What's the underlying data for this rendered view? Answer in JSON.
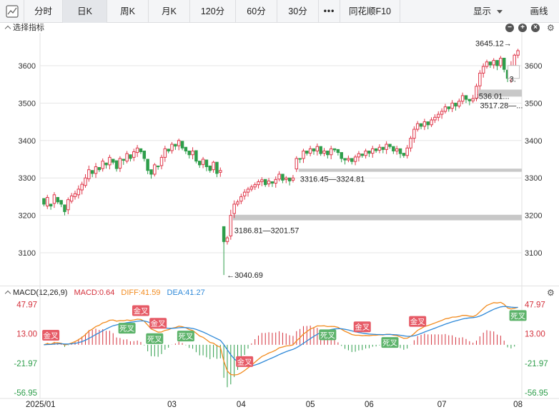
{
  "toolbar": {
    "tabs": [
      {
        "label": "分时",
        "active": false
      },
      {
        "label": "日K",
        "active": true
      },
      {
        "label": "周K",
        "active": false
      },
      {
        "label": "月K",
        "active": false
      },
      {
        "label": "120分",
        "active": false
      },
      {
        "label": "60分",
        "active": false
      },
      {
        "label": "30分",
        "active": false
      }
    ],
    "more": "•••",
    "f10": "同花顺F10",
    "display": "显示",
    "draw": "画线"
  },
  "indicator_bar": {
    "label": "选择指标"
  },
  "macd": {
    "title": "MACD(12,26,9)",
    "macd_label": "MACD:0.64",
    "diff_label": "DIFF:41.59",
    "dea_label": "DEA:41.27",
    "colors": {
      "macd": "#d4313c",
      "diff": "#f28b1e",
      "dea": "#2f89d8"
    }
  },
  "colors": {
    "up": "#e0374a",
    "down": "#2e9e4b",
    "grid": "#e6e6e6",
    "gap": "#c8c8c8",
    "golden": "#e65a66",
    "death": "#5cb36a"
  },
  "chart_data": {
    "type": "candlestick",
    "price_axis": {
      "ticks": [
        3100,
        3200,
        3300,
        3400,
        3500,
        3600
      ],
      "range": [
        3020,
        3680
      ]
    },
    "macd_axis": {
      "ticks": [
        47.97,
        13.0,
        -21.97,
        -56.95
      ],
      "labels": [
        "47.97",
        "13.00",
        "-21.97",
        "-56.95"
      ]
    },
    "x_axis_labels": [
      {
        "label": "2025/01",
        "index": 0
      },
      {
        "label": "03",
        "index": 37
      },
      {
        "label": "04",
        "index": 57
      },
      {
        "label": "05",
        "index": 77
      },
      {
        "label": "06",
        "index": 94
      },
      {
        "label": "07",
        "index": 115
      },
      {
        "label": "08",
        "index": 137
      }
    ],
    "candles": [
      [
        3245,
        3230,
        3210
      ],
      [
        3225,
        3248,
        3255
      ],
      [
        3230,
        3225,
        3218
      ],
      [
        3232,
        3255,
        3262
      ],
      [
        3248,
        3236,
        3228
      ],
      [
        3240,
        3230,
        3210
      ],
      [
        3228,
        3210,
        3203
      ],
      [
        3215,
        3242,
        3248
      ],
      [
        3238,
        3252,
        3260
      ],
      [
        3250,
        3258,
        3266
      ],
      [
        3255,
        3270,
        3280
      ],
      [
        3268,
        3283,
        3290
      ],
      [
        3280,
        3300,
        3310
      ],
      [
        3298,
        3322,
        3333
      ],
      [
        3320,
        3312,
        3308
      ],
      [
        3312,
        3330,
        3340
      ],
      [
        3328,
        3322,
        3315
      ],
      [
        3325,
        3345,
        3352
      ],
      [
        3340,
        3335,
        3328
      ],
      [
        3335,
        3355,
        3362
      ],
      [
        3350,
        3342,
        3336
      ],
      [
        3346,
        3325,
        3320
      ],
      [
        3326,
        3352,
        3358
      ],
      [
        3350,
        3347,
        3340
      ],
      [
        3345,
        3365,
        3372
      ],
      [
        3362,
        3352,
        3345
      ],
      [
        3355,
        3370,
        3378
      ],
      [
        3368,
        3380,
        3388
      ],
      [
        3378,
        3370,
        3362
      ],
      [
        3372,
        3352,
        3345
      ],
      [
        3350,
        3320,
        3314
      ],
      [
        3322,
        3310,
        3305
      ],
      [
        3310,
        3335,
        3340
      ],
      [
        3332,
        3330,
        3322
      ],
      [
        3333,
        3355,
        3362
      ],
      [
        3355,
        3378,
        3386
      ],
      [
        3377,
        3372,
        3366
      ],
      [
        3373,
        3390,
        3396
      ],
      [
        3390,
        3385,
        3376
      ],
      [
        3386,
        3400,
        3405
      ],
      [
        3398,
        3380,
        3372
      ],
      [
        3382,
        3372,
        3365
      ],
      [
        3372,
        3362,
        3352
      ],
      [
        3362,
        3372,
        3382
      ],
      [
        3373,
        3345,
        3340
      ],
      [
        3345,
        3335,
        3330
      ],
      [
        3336,
        3350,
        3356
      ],
      [
        3348,
        3330,
        3324
      ],
      [
        3332,
        3320,
        3318
      ],
      [
        3322,
        3342,
        3346
      ],
      [
        3342,
        3312,
        3305
      ],
      [
        3315,
        3320,
        3328
      ],
      [
        3170,
        3130,
        3125
      ],
      [
        3130,
        3140,
        3145
      ],
      [
        3145,
        3200,
        3215
      ],
      [
        3205,
        3230,
        3240
      ],
      [
        3230,
        3236,
        3242
      ],
      [
        3238,
        3250,
        3258
      ],
      [
        3252,
        3262,
        3270
      ],
      [
        3262,
        3270,
        3276
      ],
      [
        3270,
        3276,
        3282
      ],
      [
        3276,
        3282,
        3288
      ],
      [
        3282,
        3290,
        3296
      ],
      [
        3290,
        3295,
        3302
      ],
      [
        3296,
        3282,
        3276
      ],
      [
        3284,
        3292,
        3300
      ],
      [
        3290,
        3286,
        3280
      ],
      [
        3286,
        3296,
        3304
      ],
      [
        3297,
        3310,
        3318
      ],
      [
        3310,
        3294,
        3290
      ],
      [
        3296,
        3300,
        3305
      ],
      [
        3300,
        3292,
        3284
      ],
      [
        3294,
        3300,
        3308
      ],
      [
        3324,
        3352,
        3358
      ],
      [
        3352,
        3350,
        3344
      ],
      [
        3352,
        3372,
        3378
      ],
      [
        3372,
        3366,
        3358
      ],
      [
        3366,
        3378,
        3386
      ],
      [
        3378,
        3372,
        3366
      ],
      [
        3372,
        3384,
        3392
      ],
      [
        3384,
        3365,
        3360
      ],
      [
        3366,
        3372,
        3380
      ],
      [
        3372,
        3362,
        3356
      ],
      [
        3362,
        3378,
        3386
      ],
      [
        3378,
        3375,
        3370
      ],
      [
        3376,
        3368,
        3362
      ],
      [
        3368,
        3352,
        3346
      ],
      [
        3352,
        3348,
        3342
      ],
      [
        3348,
        3352,
        3360
      ],
      [
        3352,
        3344,
        3338
      ],
      [
        3344,
        3356,
        3362
      ],
      [
        3356,
        3365,
        3372
      ],
      [
        3364,
        3360,
        3354
      ],
      [
        3360,
        3372,
        3378
      ],
      [
        3372,
        3366,
        3360
      ],
      [
        3366,
        3378,
        3386
      ],
      [
        3378,
        3373,
        3366
      ],
      [
        3374,
        3382,
        3390
      ],
      [
        3382,
        3376,
        3370
      ],
      [
        3376,
        3390,
        3398
      ],
      [
        3390,
        3384,
        3378
      ],
      [
        3384,
        3372,
        3366
      ],
      [
        3372,
        3378,
        3386
      ],
      [
        3378,
        3365,
        3360
      ],
      [
        3366,
        3360,
        3354
      ],
      [
        3360,
        3380,
        3388
      ],
      [
        3380,
        3406,
        3412
      ],
      [
        3406,
        3430,
        3438
      ],
      [
        3430,
        3445,
        3452
      ],
      [
        3445,
        3438,
        3432
      ],
      [
        3438,
        3450,
        3458
      ],
      [
        3450,
        3442,
        3436
      ],
      [
        3442,
        3455,
        3462
      ],
      [
        3455,
        3462,
        3470
      ],
      [
        3462,
        3470,
        3478
      ],
      [
        3470,
        3478,
        3486
      ],
      [
        3478,
        3490,
        3498
      ],
      [
        3490,
        3485,
        3478
      ],
      [
        3486,
        3500,
        3508
      ],
      [
        3500,
        3492,
        3486
      ],
      [
        3492,
        3505,
        3512
      ],
      [
        3505,
        3520,
        3528
      ],
      [
        3520,
        3510,
        3503
      ],
      [
        3510,
        3506,
        3500
      ],
      [
        3506,
        3512,
        3522
      ],
      [
        3513,
        3545,
        3552
      ],
      [
        3546,
        3580,
        3588
      ],
      [
        3580,
        3598,
        3606
      ],
      [
        3598,
        3610,
        3616
      ],
      [
        3610,
        3602,
        3596
      ],
      [
        3602,
        3614,
        3620
      ],
      [
        3614,
        3600,
        3593
      ],
      [
        3600,
        3620,
        3626
      ],
      [
        3620,
        3590,
        3584
      ],
      [
        3588,
        3566,
        3560
      ],
      [
        3566,
        3600,
        3612
      ],
      [
        3600,
        3628,
        3632
      ],
      [
        3628,
        3640,
        3645
      ]
    ],
    "gaps": [
      {
        "low": 3186.81,
        "high": 3201.57,
        "label": "3186.81—3201.57"
      },
      {
        "low": 3316.45,
        "high": 3324.81,
        "label": "3316.45—3324.81"
      },
      {
        "low": 3517.28,
        "high": 3536.01,
        "label": "3517.28—..."
      }
    ],
    "gap_label_upper": "3536.01...",
    "annotations": [
      {
        "label": "3645.12→",
        "kind": "high"
      },
      {
        "label": "←3040.69",
        "kind": "low"
      },
      {
        "label": "3.",
        "kind": "right-cut"
      }
    ],
    "macd_signals": [
      {
        "label": "金叉",
        "index": 2,
        "kind": "golden"
      },
      {
        "label": "死叉",
        "index": 24,
        "kind": "death"
      },
      {
        "label": "金叉",
        "index": 28,
        "kind": "golden"
      },
      {
        "label": "金叉",
        "index": 33,
        "kind": "golden"
      },
      {
        "label": "死叉",
        "index": 32,
        "kind": "death"
      },
      {
        "label": "死叉",
        "index": 41,
        "kind": "death"
      },
      {
        "label": "金叉",
        "index": 58,
        "kind": "golden"
      },
      {
        "label": "死叉",
        "index": 82,
        "kind": "death"
      },
      {
        "label": "金叉",
        "index": 92,
        "kind": "golden"
      },
      {
        "label": "死叉",
        "index": 100,
        "kind": "death"
      },
      {
        "label": "金叉",
        "index": 108,
        "kind": "golden"
      },
      {
        "label": "死叉",
        "index": 138,
        "kind": "death"
      }
    ]
  }
}
